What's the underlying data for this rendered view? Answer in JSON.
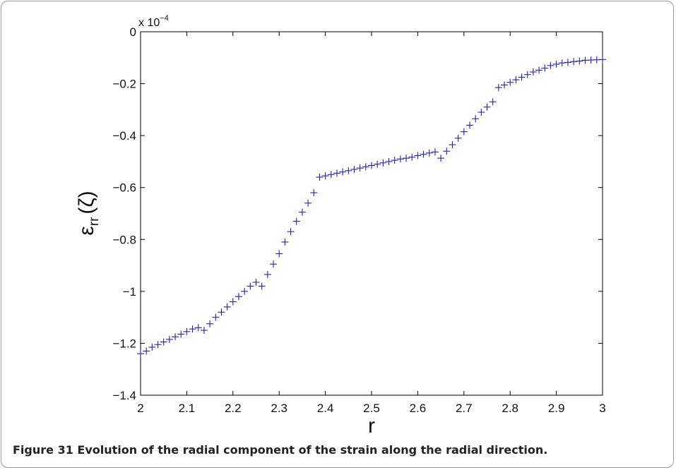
{
  "chart_data": {
    "type": "scatter",
    "marker": "plus",
    "color": "#1f1fbf",
    "x_label": "r",
    "y_label_main": "ε",
    "y_label_sub": "rr",
    "y_label_arg": "(ζ)",
    "y_multiplier_base": "x 10",
    "y_multiplier_exp": "−4",
    "xlim": [
      2,
      3
    ],
    "ylim": [
      -1.4,
      0
    ],
    "x_ticks": [
      2,
      2.1,
      2.2,
      2.3,
      2.4,
      2.5,
      2.6,
      2.7,
      2.8,
      2.9,
      3
    ],
    "x_tick_labels": [
      "2",
      "2.1",
      "2.2",
      "2.3",
      "2.4",
      "2.5",
      "2.6",
      "2.7",
      "2.8",
      "2.9",
      "3"
    ],
    "y_ticks": [
      0,
      -0.2,
      -0.4,
      -0.6,
      -0.8,
      -1,
      -1.2,
      -1.4
    ],
    "y_tick_labels": [
      "0",
      "−0.2",
      "−0.4",
      "−0.6",
      "−0.8",
      "−1",
      "−1.2",
      "−1.4"
    ],
    "grid": false,
    "x": [
      2.0,
      2.0125,
      2.025,
      2.0375,
      2.05,
      2.0625,
      2.075,
      2.0875,
      2.1,
      2.1125,
      2.125,
      2.1375,
      2.15,
      2.1625,
      2.175,
      2.1875,
      2.2,
      2.2125,
      2.225,
      2.2375,
      2.25,
      2.2625,
      2.275,
      2.2875,
      2.3,
      2.3125,
      2.325,
      2.3375,
      2.35,
      2.3625,
      2.375,
      2.3875,
      2.4,
      2.4125,
      2.425,
      2.4375,
      2.45,
      2.4625,
      2.475,
      2.4875,
      2.5,
      2.5125,
      2.525,
      2.5375,
      2.55,
      2.5625,
      2.575,
      2.5875,
      2.6,
      2.6125,
      2.625,
      2.6375,
      2.65,
      2.6625,
      2.675,
      2.6875,
      2.7,
      2.7125,
      2.725,
      2.7375,
      2.75,
      2.7625,
      2.775,
      2.7875,
      2.8,
      2.8125,
      2.825,
      2.8375,
      2.85,
      2.8625,
      2.875,
      2.8875,
      2.9,
      2.9125,
      2.925,
      2.9375,
      2.95,
      2.9625,
      2.975,
      2.9875,
      3.0
    ],
    "y": [
      -1.24,
      -1.23,
      -1.215,
      -1.205,
      -1.195,
      -1.185,
      -1.175,
      -1.165,
      -1.155,
      -1.145,
      -1.14,
      -1.15,
      -1.125,
      -1.1,
      -1.08,
      -1.06,
      -1.04,
      -1.02,
      -1.0,
      -0.98,
      -0.965,
      -0.98,
      -0.935,
      -0.895,
      -0.855,
      -0.81,
      -0.77,
      -0.73,
      -0.695,
      -0.66,
      -0.62,
      -0.56,
      -0.555,
      -0.55,
      -0.545,
      -0.54,
      -0.535,
      -0.53,
      -0.525,
      -0.52,
      -0.515,
      -0.51,
      -0.505,
      -0.5,
      -0.495,
      -0.49,
      -0.487,
      -0.483,
      -0.477,
      -0.472,
      -0.467,
      -0.463,
      -0.487,
      -0.46,
      -0.435,
      -0.41,
      -0.385,
      -0.36,
      -0.335,
      -0.31,
      -0.29,
      -0.27,
      -0.215,
      -0.205,
      -0.195,
      -0.185,
      -0.175,
      -0.165,
      -0.155,
      -0.148,
      -0.14,
      -0.13,
      -0.125,
      -0.12,
      -0.118,
      -0.115,
      -0.113,
      -0.11,
      -0.109,
      -0.108,
      -0.107
    ]
  },
  "caption": "Figure 31 Evolution of the radial component of the strain along the radial direction."
}
